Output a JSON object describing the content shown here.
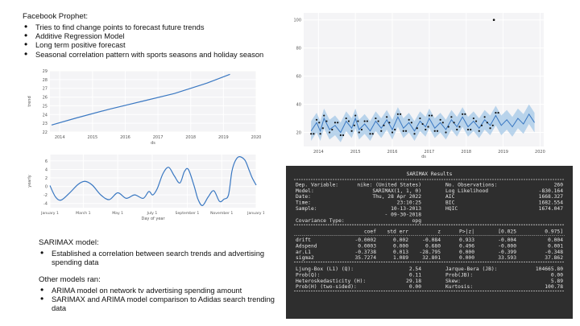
{
  "prophet": {
    "heading": "Facebook Prophet:",
    "bullets": [
      "Tries to find change points to forecast future trends",
      "Additive Regression Model",
      "Long term positive forecast",
      "Seasonal correlation pattern with sports seasons and holiday season"
    ]
  },
  "sarimax_note": {
    "heading": "SARIMAX model:",
    "bullets": [
      "Established a correlation between search trends and advertising spending data"
    ]
  },
  "other_models": {
    "heading": "Other models ran:",
    "bullets": [
      "ARIMA model on network tv advertising spending  amount",
      "SARIMAX and ARIMA model comparison to Adidas search trending data"
    ]
  },
  "colors": {
    "line": "#3a78c2",
    "band": "#a9cbe8",
    "dark": "#2e2e2e"
  },
  "chart_data": [
    {
      "type": "line",
      "xlabel": "ds",
      "ylabel": "trend",
      "x_ticks": [
        "2014",
        "2015",
        "2016",
        "2017",
        "2018",
        "2019",
        "2020"
      ],
      "y_ticks": [
        "22",
        "23",
        "24",
        "25",
        "26",
        "27",
        "28",
        "29"
      ],
      "ylim": [
        22,
        29
      ],
      "x": [
        2013.75,
        2014.5,
        2015.5,
        2016.5,
        2017.5,
        2018.5,
        2019.2
      ],
      "values": [
        22.8,
        23.6,
        24.6,
        25.5,
        26.4,
        27.6,
        28.6
      ],
      "grid": true
    },
    {
      "type": "line",
      "xlabel": "Day of year",
      "ylabel": "yearly",
      "x_ticks": [
        "January 1",
        "March 1",
        "May 1",
        "July 1",
        "September 1",
        "November 1",
        "January 1"
      ],
      "y_ticks": [
        "-4",
        "-2",
        "0",
        "2",
        "4",
        "6"
      ],
      "ylim": [
        -5,
        7.5
      ],
      "x": [
        0,
        10,
        20,
        35,
        50,
        62,
        75,
        90,
        105,
        120,
        135,
        150,
        165,
        175,
        182,
        190,
        200,
        210,
        220,
        230,
        238,
        245,
        255,
        262,
        270,
        280,
        290,
        300,
        308,
        316,
        322,
        328,
        335,
        345,
        352,
        358,
        365
      ],
      "values": [
        0.2,
        -2.5,
        -3.2,
        -1.5,
        0.5,
        1.2,
        0.3,
        -2.0,
        -3.1,
        -1.5,
        -2.8,
        -2.0,
        -2.8,
        -1.2,
        -2.0,
        -0.5,
        3.0,
        4.5,
        2.5,
        0.8,
        3.5,
        4.0,
        0.2,
        -3.0,
        -4.5,
        -2.5,
        -1.0,
        -3.5,
        -3.0,
        -2.0,
        3.5,
        6.0,
        7.0,
        6.2,
        4.0,
        2.0,
        0.3
      ],
      "grid": true
    },
    {
      "type": "line",
      "xlabel": "ds",
      "x_ticks": [
        "2014",
        "2015",
        "2016",
        "2017",
        "2018",
        "2019",
        "2020"
      ],
      "y_ticks": [
        "20",
        "40",
        "60",
        "80",
        "100"
      ],
      "ylim": [
        10,
        105
      ],
      "forecast": [
        [
          2013.8,
          21
        ],
        [
          2013.95,
          27
        ],
        [
          2014.05,
          21
        ],
        [
          2014.15,
          30
        ],
        [
          2014.3,
          22
        ],
        [
          2014.45,
          25
        ],
        [
          2014.6,
          20
        ],
        [
          2014.75,
          28
        ],
        [
          2014.9,
          23
        ],
        [
          2015.0,
          30
        ],
        [
          2015.1,
          22
        ],
        [
          2015.25,
          26
        ],
        [
          2015.4,
          21
        ],
        [
          2015.55,
          28
        ],
        [
          2015.7,
          23
        ],
        [
          2015.85,
          29
        ],
        [
          2016.0,
          22
        ],
        [
          2016.15,
          31
        ],
        [
          2016.3,
          23
        ],
        [
          2016.45,
          27
        ],
        [
          2016.6,
          21
        ],
        [
          2016.75,
          28
        ],
        [
          2016.9,
          24
        ],
        [
          2017.0,
          30
        ],
        [
          2017.15,
          23
        ],
        [
          2017.3,
          27
        ],
        [
          2017.45,
          22
        ],
        [
          2017.6,
          29
        ],
        [
          2017.75,
          24
        ],
        [
          2017.9,
          31
        ],
        [
          2018.05,
          24
        ],
        [
          2018.2,
          28
        ],
        [
          2018.35,
          23
        ],
        [
          2018.5,
          29
        ],
        [
          2018.65,
          25
        ],
        [
          2018.8,
          32
        ],
        [
          2018.95,
          25
        ],
        [
          2019.1,
          29
        ],
        [
          2019.25,
          24
        ],
        [
          2019.4,
          30
        ],
        [
          2019.55,
          26
        ],
        [
          2019.7,
          33
        ],
        [
          2019.85,
          27
        ]
      ],
      "outlier": [
        2018.75,
        100
      ],
      "grid": true
    }
  ],
  "sarimax_table": {
    "title": "SARIMAX Results",
    "rows1": [
      [
        "Dep. Variable:",
        "nike: (United States)",
        "No. Observations:",
        "260"
      ],
      [
        "Model:",
        "SARIMAX(1, 1, 0)",
        "Log Likelihood",
        "-830.164"
      ],
      [
        "Date:",
        "Thu, 28 Apr 2022",
        "AIC",
        "1668.327"
      ],
      [
        "Time:",
        "23:10:25",
        "BIC",
        "1682.554"
      ],
      [
        "Sample:",
        "10-13-2013",
        "HQIC",
        "1674.047"
      ],
      [
        "",
        "- 09-30-2018",
        "",
        ""
      ],
      [
        "Covariance Type:",
        "opg",
        "",
        ""
      ]
    ],
    "coef_header": [
      "coef",
      "std err",
      "z",
      "P>|z|",
      "[0.025",
      "0.975]"
    ],
    "coef_rows": [
      [
        "drift",
        "-0.0002",
        "0.002",
        "-0.084",
        "0.933",
        "-0.004",
        "0.004"
      ],
      [
        "Adspend",
        "0.0003",
        "0.000",
        "0.680",
        "0.496",
        "-0.000",
        "0.001"
      ],
      [
        "ar.L1",
        "-0.3738",
        "0.013",
        "-28.795",
        "0.000",
        "-0.399",
        "-0.348"
      ],
      [
        "sigma2",
        "35.7274",
        "1.089",
        "32.801",
        "0.000",
        "33.593",
        "37.862"
      ]
    ],
    "rows3": [
      [
        "Ljung-Box (L1) (Q):",
        "2.54",
        "Jarque-Bera (JB):",
        "104665.80"
      ],
      [
        "Prob(Q):",
        "0.11",
        "Prob(JB):",
        "0.00"
      ],
      [
        "Heteroskedasticity (H):",
        "29.18",
        "Skew:",
        "5.89"
      ],
      [
        "Prob(H) (two-sided):",
        "0.00",
        "Kurtosis:",
        "100.78"
      ]
    ]
  }
}
